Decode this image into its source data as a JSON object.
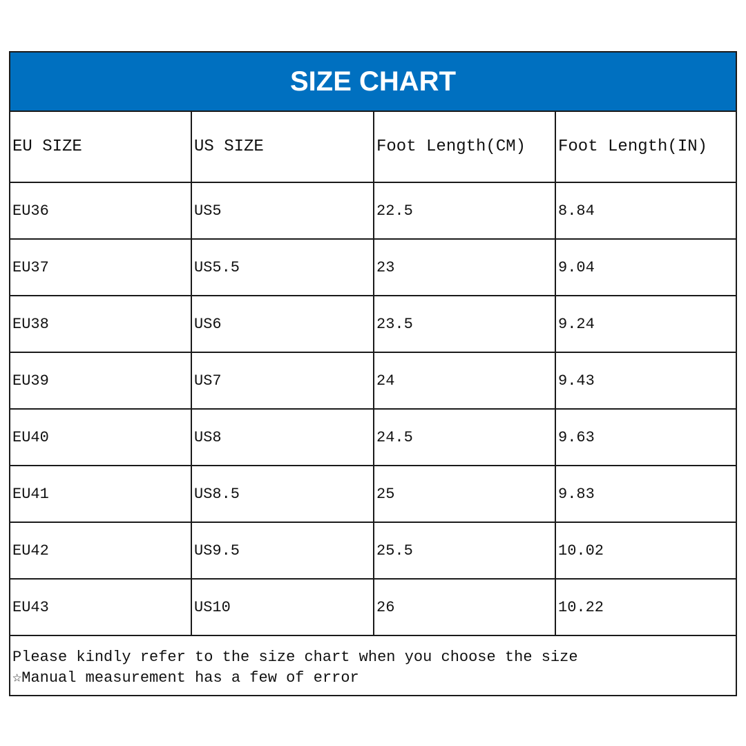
{
  "title": "SIZE CHART",
  "colors": {
    "header_bg": "#0070C0",
    "header_text": "#FFFFFF"
  },
  "columns": [
    "EU SIZE",
    "US SIZE",
    "Foot Length(CM)",
    "Foot Length(IN)"
  ],
  "rows": [
    [
      "EU36",
      "US5",
      "22.5",
      "8.84"
    ],
    [
      "EU37",
      "US5.5",
      "23",
      "9.04"
    ],
    [
      "EU38",
      "US6",
      "23.5",
      "9.24"
    ],
    [
      "EU39",
      "US7",
      "24",
      "9.43"
    ],
    [
      "EU40",
      "US8",
      "24.5",
      "9.63"
    ],
    [
      "EU41",
      "US8.5",
      "25",
      "9.83"
    ],
    [
      "EU42",
      "US9.5",
      "25.5",
      "10.02"
    ],
    [
      "EU43",
      "US10",
      "26",
      "10.22"
    ]
  ],
  "notes": [
    "Please kindly refer to the size chart when you choose the size",
    "☆Manual measurement has a few of error"
  ]
}
